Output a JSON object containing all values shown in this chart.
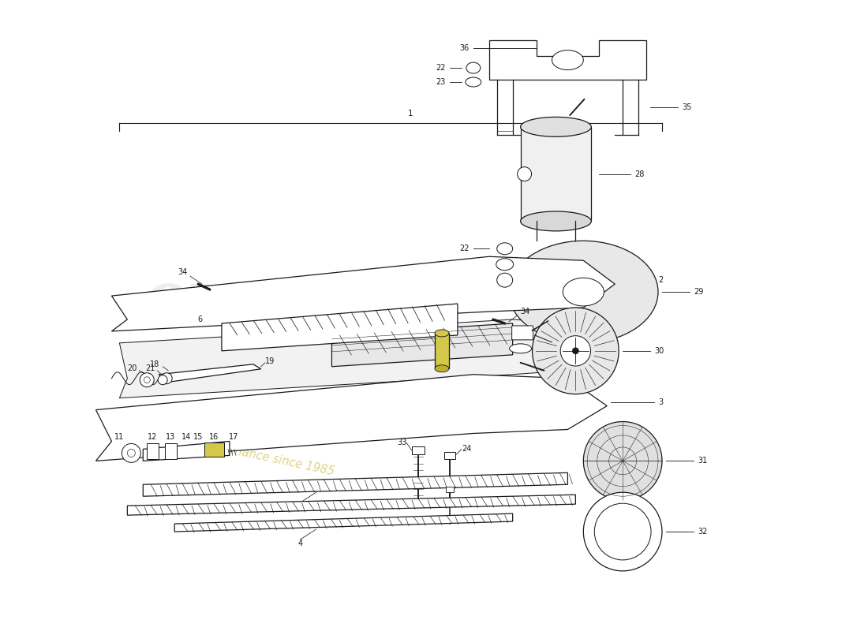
{
  "bg_color": "#ffffff",
  "lc": "#1a1a1a",
  "lw": 0.9,
  "fig_w": 11.0,
  "fig_h": 8.0,
  "dpi": 100
}
